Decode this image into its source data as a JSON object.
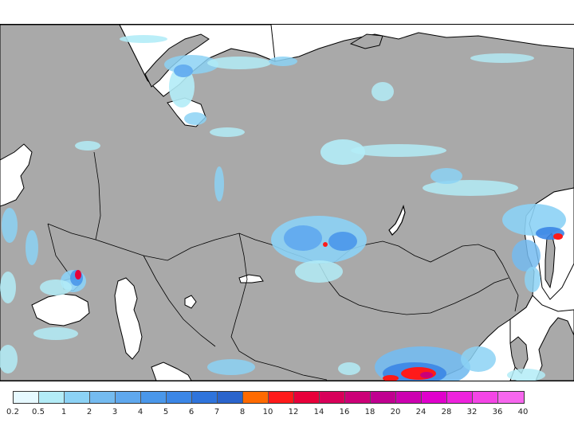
{
  "map": {
    "colors": {
      "ocean": "#ffffff",
      "land_no_precip": "#a9a9a9",
      "coastline": "#000000",
      "border": "#000000"
    }
  },
  "legend": {
    "labels": [
      "0.2",
      "0.5",
      "1",
      "2",
      "3",
      "4",
      "5",
      "6",
      "7",
      "8",
      "10",
      "12",
      "14",
      "16",
      "18",
      "20",
      "24",
      "28",
      "32",
      "36",
      "40"
    ],
    "colors": [
      "#e6f9ff",
      "#b3ecf7",
      "#8cd2f5",
      "#74bbf0",
      "#5fa8ee",
      "#4a97ea",
      "#3b86e6",
      "#2f74dc",
      "#2a64cc",
      "#ff6a00",
      "#ff1a1a",
      "#e8003a",
      "#d8005a",
      "#cc0077",
      "#c00090",
      "#cc00b0",
      "#e000cc",
      "#ee22dd",
      "#f445e6",
      "#f766ee"
    ]
  }
}
